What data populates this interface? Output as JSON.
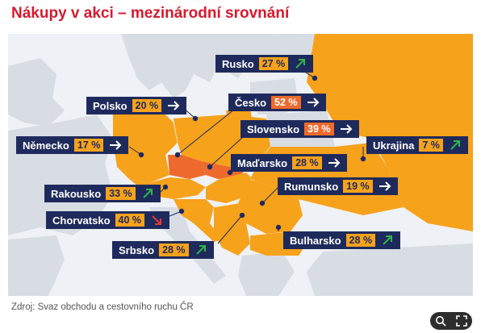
{
  "title": "Nákupy v akci – mezinárodní srovnání",
  "source": "Zdroj: Svaz obchodu a cestovního ruchu ČR",
  "colors": {
    "title": "#d7192e",
    "label_bg": "#1f2a5c",
    "value_bg": "#f7a21b",
    "czech_highlight": "#ee6a2c",
    "land_highlight": "#f7a21b",
    "land_other": "#d8dde4",
    "sea": "#f0f2f5",
    "trend_up": "#2fb34a",
    "trend_down": "#e53935"
  },
  "labels": [
    {
      "country": "Rusko",
      "value": "27 %",
      "trend": "up",
      "icon": "arrow-up-right-icon"
    },
    {
      "country": "Polsko",
      "value": "20 %",
      "trend": "neutral",
      "icon": "arrow-right-icon"
    },
    {
      "country": "Česko",
      "value": "52 %",
      "trend": "neutral",
      "icon": "arrow-right-icon"
    },
    {
      "country": "Slovensko",
      "value": "39 %",
      "trend": "neutral",
      "icon": "arrow-right-icon"
    },
    {
      "country": "Německo",
      "value": "17 %",
      "trend": "neutral",
      "icon": "arrow-right-icon"
    },
    {
      "country": "Ukrajina",
      "value": "7 %",
      "trend": "up",
      "icon": "arrow-up-right-icon"
    },
    {
      "country": "Maďarsko",
      "value": "28 %",
      "trend": "neutral",
      "icon": "arrow-right-icon"
    },
    {
      "country": "Rakousko",
      "value": "33 %",
      "trend": "up",
      "icon": "arrow-up-right-icon"
    },
    {
      "country": "Rumunsko",
      "value": "19 %",
      "trend": "neutral",
      "icon": "arrow-right-icon"
    },
    {
      "country": "Chorvatsko",
      "value": "40 %",
      "trend": "down",
      "icon": "arrow-down-right-icon"
    },
    {
      "country": "Bulharsko",
      "value": "28 %",
      "trend": "up",
      "icon": "arrow-up-right-icon"
    },
    {
      "country": "Srbsko",
      "value": "28 %",
      "trend": "up",
      "icon": "arrow-up-right-icon"
    }
  ],
  "controls": [
    {
      "icon": "zoom-icon"
    },
    {
      "icon": "fullscreen-icon"
    }
  ]
}
